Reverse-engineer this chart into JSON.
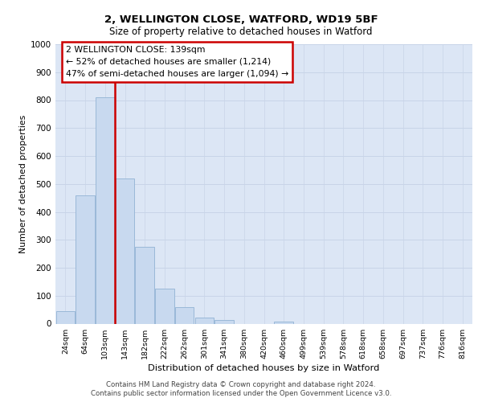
{
  "title": "2, WELLINGTON CLOSE, WATFORD, WD19 5BF",
  "subtitle": "Size of property relative to detached houses in Watford",
  "xlabel": "Distribution of detached houses by size in Watford",
  "ylabel": "Number of detached properties",
  "bar_labels": [
    "24sqm",
    "64sqm",
    "103sqm",
    "143sqm",
    "182sqm",
    "222sqm",
    "262sqm",
    "301sqm",
    "341sqm",
    "380sqm",
    "420sqm",
    "460sqm",
    "499sqm",
    "539sqm",
    "578sqm",
    "618sqm",
    "658sqm",
    "697sqm",
    "737sqm",
    "776sqm",
    "816sqm"
  ],
  "bar_values": [
    46,
    460,
    810,
    520,
    275,
    125,
    58,
    22,
    12,
    0,
    0,
    7,
    0,
    0,
    0,
    0,
    0,
    0,
    0,
    0,
    0
  ],
  "bar_color": "#c8d9ef",
  "bar_edge_color": "#9ab8d8",
  "vline_x_index": 2.5,
  "vline_color": "#cc0000",
  "annotation_text": "2 WELLINGTON CLOSE: 139sqm\n← 52% of detached houses are smaller (1,214)\n47% of semi-detached houses are larger (1,094) →",
  "annotation_box_edge_color": "#cc0000",
  "ylim": [
    0,
    1000
  ],
  "yticks": [
    0,
    100,
    200,
    300,
    400,
    500,
    600,
    700,
    800,
    900,
    1000
  ],
  "grid_color": "#c8d4e8",
  "bg_color": "#dce6f5",
  "footer_line1": "Contains HM Land Registry data © Crown copyright and database right 2024.",
  "footer_line2": "Contains public sector information licensed under the Open Government Licence v3.0."
}
